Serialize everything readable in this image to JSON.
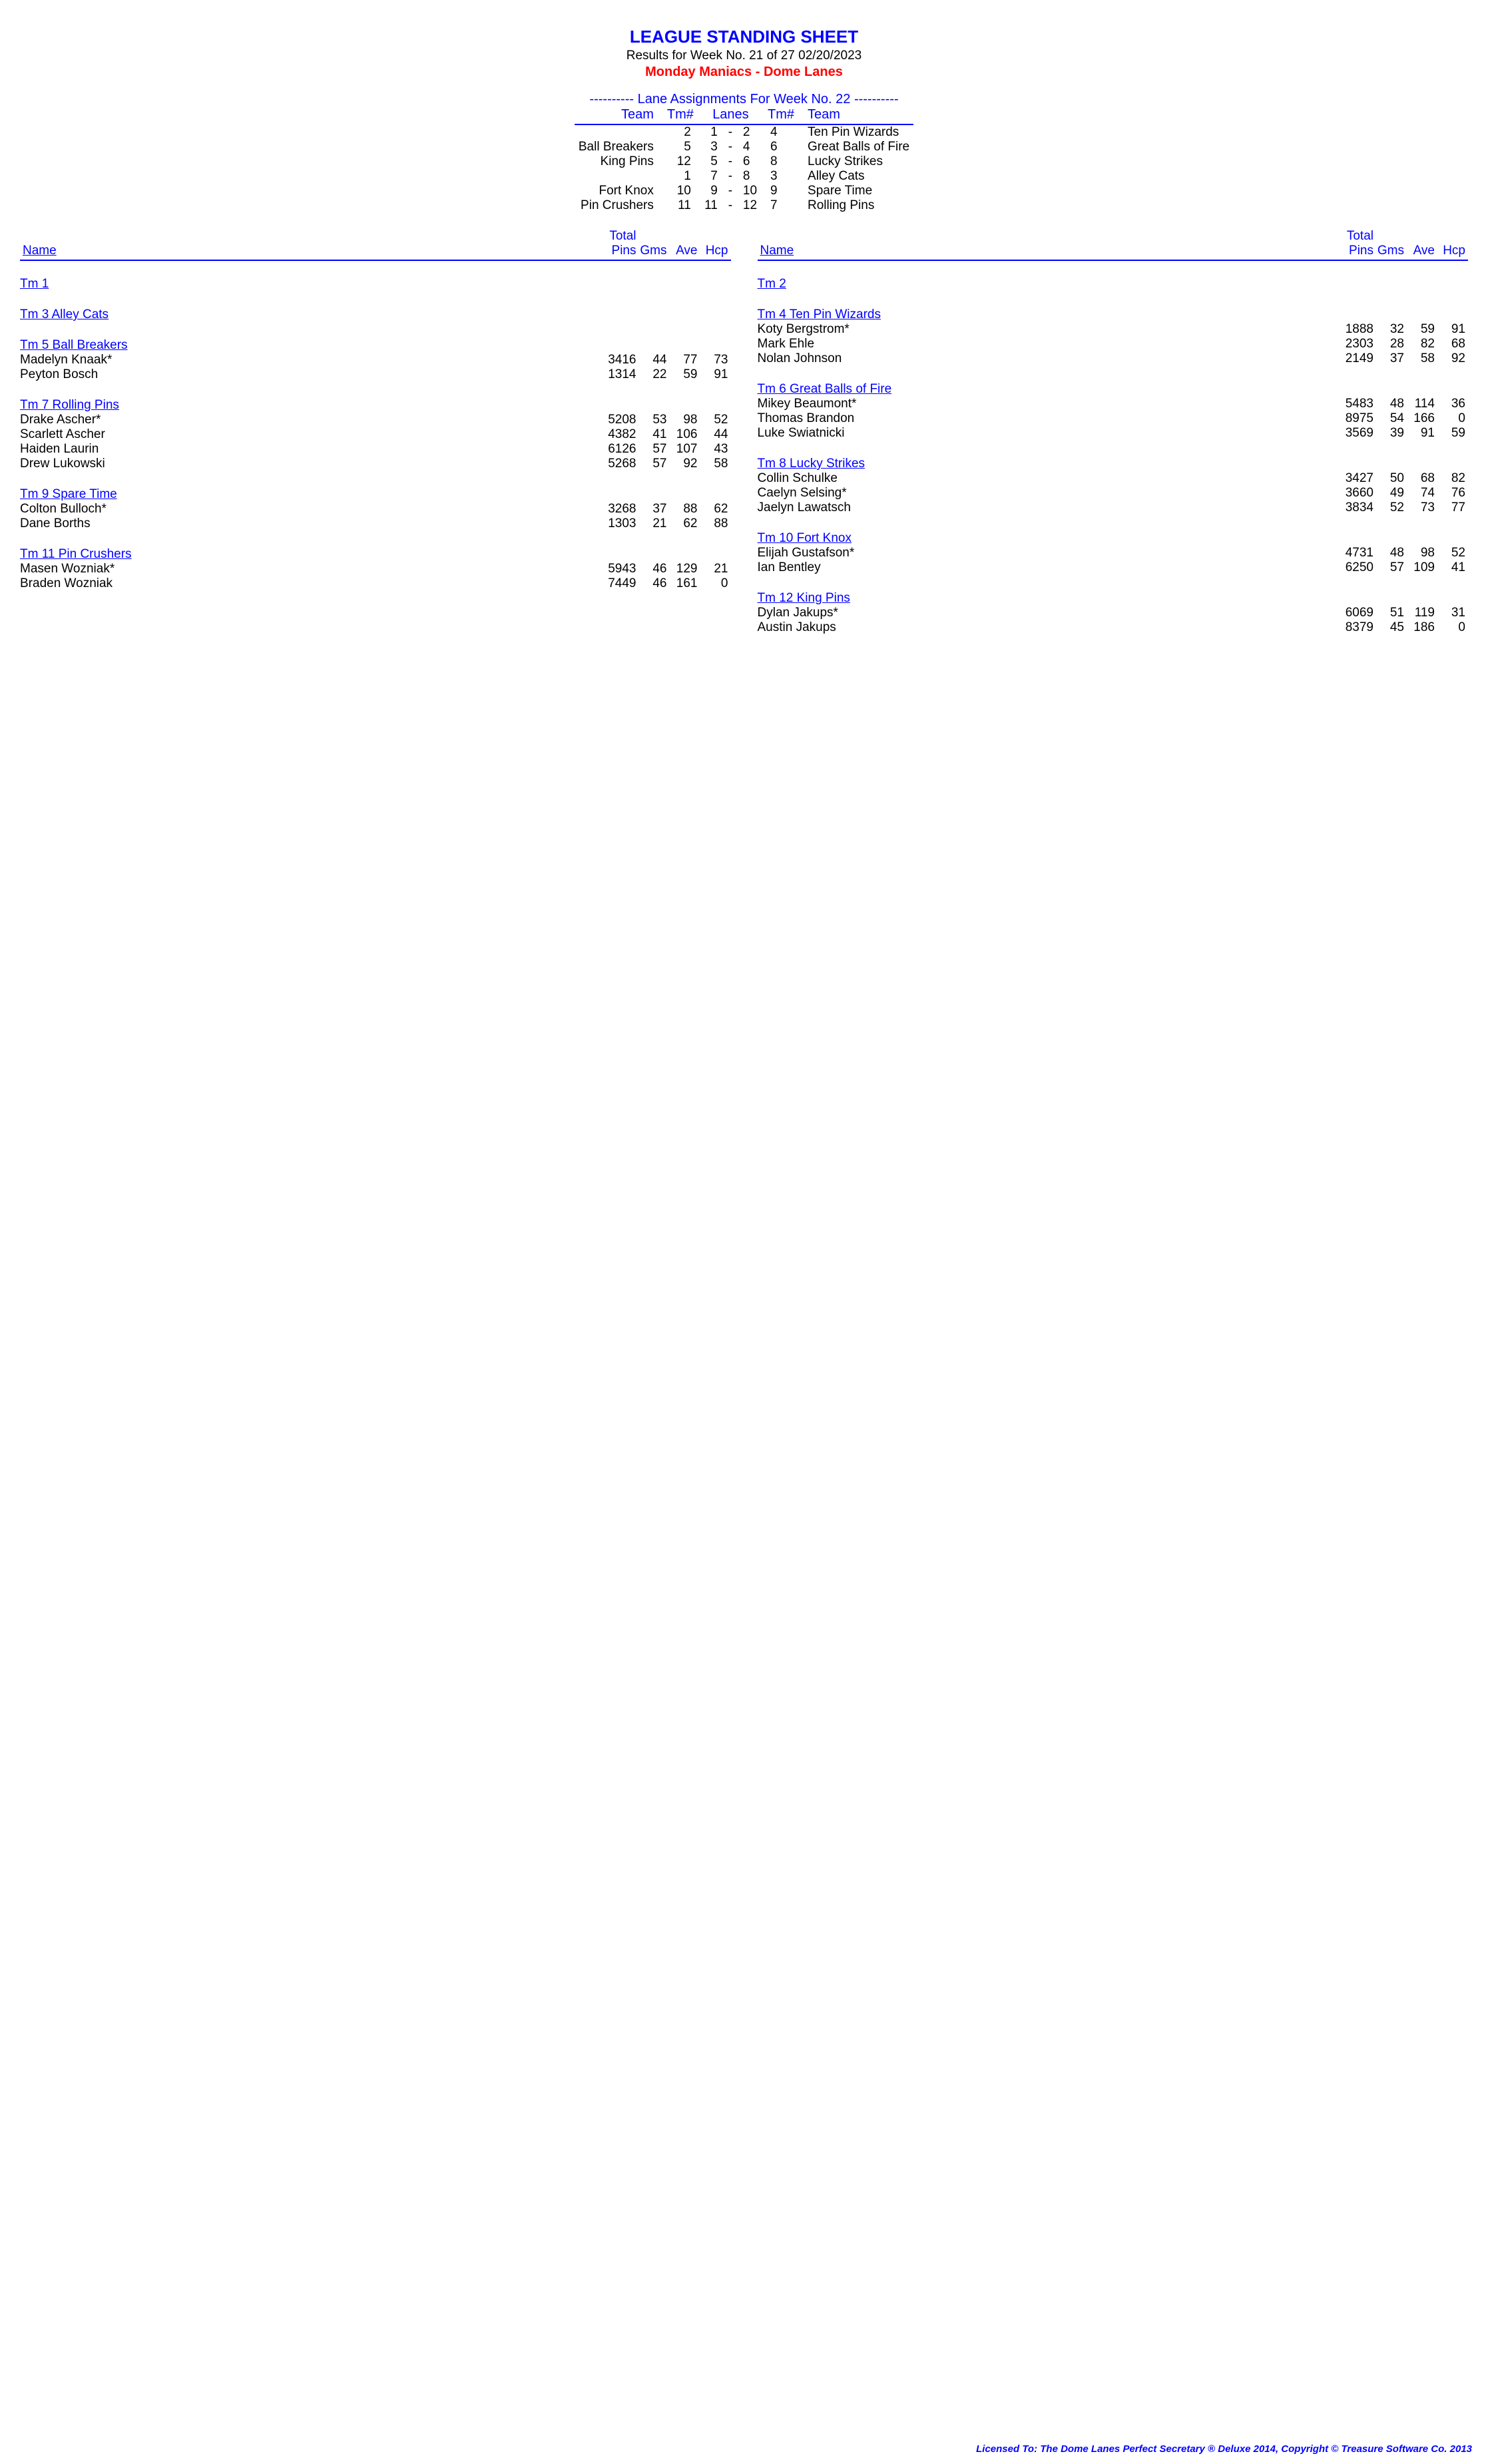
{
  "header": {
    "title": "LEAGUE STANDING SHEET",
    "results_line": "Results for Week No. 21 of 27    02/20/2023",
    "league_line": "Monday Maniacs - Dome Lanes"
  },
  "lane_assignments": {
    "heading": "---------- Lane Assignments For Week No. 22 ----------",
    "columns": {
      "team_l": "Team",
      "tm_l": "Tm#",
      "lanes": "Lanes",
      "tm_r": "Tm#",
      "team_r": "Team"
    },
    "rows": [
      {
        "team_l": "",
        "tm_l": "2",
        "lane_a": "1",
        "lane_b": "2",
        "tm_r": "4",
        "team_r": "Ten Pin Wizards"
      },
      {
        "team_l": "Ball Breakers",
        "tm_l": "5",
        "lane_a": "3",
        "lane_b": "4",
        "tm_r": "6",
        "team_r": "Great Balls of Fire"
      },
      {
        "team_l": "King Pins",
        "tm_l": "12",
        "lane_a": "5",
        "lane_b": "6",
        "tm_r": "8",
        "team_r": "Lucky Strikes"
      },
      {
        "team_l": "",
        "tm_l": "1",
        "lane_a": "7",
        "lane_b": "8",
        "tm_r": "3",
        "team_r": "Alley Cats"
      },
      {
        "team_l": "Fort Knox",
        "tm_l": "10",
        "lane_a": "9",
        "lane_b": "10",
        "tm_r": "9",
        "team_r": "Spare Time"
      },
      {
        "team_l": "Pin Crushers",
        "tm_l": "11",
        "lane_a": "11",
        "lane_b": "12",
        "tm_r": "7",
        "team_r": "Rolling Pins"
      }
    ]
  },
  "stats_headers": {
    "name": "Name",
    "total": "Total",
    "pins": "Pins",
    "gms": "Gms",
    "ave": "Ave",
    "hcp": "Hcp"
  },
  "teams_left": [
    {
      "name": "Tm 1",
      "players": []
    },
    {
      "name": "Tm 3 Alley Cats",
      "players": []
    },
    {
      "name": "Tm 5 Ball Breakers",
      "players": [
        {
          "name": "Madelyn Knaak*",
          "pins": "3416",
          "gms": "44",
          "ave": "77",
          "hcp": "73"
        },
        {
          "name": "Peyton Bosch",
          "pins": "1314",
          "gms": "22",
          "ave": "59",
          "hcp": "91"
        }
      ]
    },
    {
      "name": "Tm 7 Rolling Pins",
      "players": [
        {
          "name": "Drake Ascher*",
          "pins": "5208",
          "gms": "53",
          "ave": "98",
          "hcp": "52"
        },
        {
          "name": "Scarlett Ascher",
          "pins": "4382",
          "gms": "41",
          "ave": "106",
          "hcp": "44"
        },
        {
          "name": "Haiden Laurin",
          "pins": "6126",
          "gms": "57",
          "ave": "107",
          "hcp": "43"
        },
        {
          "name": "Drew Lukowski",
          "pins": "5268",
          "gms": "57",
          "ave": "92",
          "hcp": "58"
        }
      ]
    },
    {
      "name": "Tm 9 Spare Time",
      "players": [
        {
          "name": "Colton Bulloch*",
          "pins": "3268",
          "gms": "37",
          "ave": "88",
          "hcp": "62"
        },
        {
          "name": "Dane Borths",
          "pins": "1303",
          "gms": "21",
          "ave": "62",
          "hcp": "88"
        }
      ]
    },
    {
      "name": "Tm 11 Pin Crushers",
      "players": [
        {
          "name": "Masen Wozniak*",
          "pins": "5943",
          "gms": "46",
          "ave": "129",
          "hcp": "21"
        },
        {
          "name": "Braden Wozniak",
          "pins": "7449",
          "gms": "46",
          "ave": "161",
          "hcp": "0"
        }
      ]
    }
  ],
  "teams_right": [
    {
      "name": "Tm 2",
      "players": []
    },
    {
      "name": "Tm 4 Ten Pin Wizards",
      "players": [
        {
          "name": "Koty Bergstrom*",
          "pins": "1888",
          "gms": "32",
          "ave": "59",
          "hcp": "91"
        },
        {
          "name": "Mark Ehle",
          "pins": "2303",
          "gms": "28",
          "ave": "82",
          "hcp": "68"
        },
        {
          "name": "Nolan Johnson",
          "pins": "2149",
          "gms": "37",
          "ave": "58",
          "hcp": "92"
        }
      ]
    },
    {
      "name": "Tm 6 Great Balls of Fire",
      "players": [
        {
          "name": "Mikey Beaumont*",
          "pins": "5483",
          "gms": "48",
          "ave": "114",
          "hcp": "36"
        },
        {
          "name": "Thomas Brandon",
          "pins": "8975",
          "gms": "54",
          "ave": "166",
          "hcp": "0"
        },
        {
          "name": "Luke Swiatnicki",
          "pins": "3569",
          "gms": "39",
          "ave": "91",
          "hcp": "59"
        }
      ]
    },
    {
      "name": "Tm 8 Lucky Strikes",
      "players": [
        {
          "name": "Collin Schulke",
          "pins": "3427",
          "gms": "50",
          "ave": "68",
          "hcp": "82"
        },
        {
          "name": "Caelyn Selsing*",
          "pins": "3660",
          "gms": "49",
          "ave": "74",
          "hcp": "76"
        },
        {
          "name": "Jaelyn Lawatsch",
          "pins": "3834",
          "gms": "52",
          "ave": "73",
          "hcp": "77"
        }
      ]
    },
    {
      "name": "Tm 10 Fort Knox",
      "players": [
        {
          "name": "Elijah Gustafson*",
          "pins": "4731",
          "gms": "48",
          "ave": "98",
          "hcp": "52"
        },
        {
          "name": "Ian Bentley",
          "pins": "6250",
          "gms": "57",
          "ave": "109",
          "hcp": "41"
        }
      ]
    },
    {
      "name": "Tm 12 King Pins",
      "players": [
        {
          "name": "Dylan Jakups*",
          "pins": "6069",
          "gms": "51",
          "ave": "119",
          "hcp": "31"
        },
        {
          "name": "Austin Jakups",
          "pins": "8379",
          "gms": "45",
          "ave": "186",
          "hcp": "0"
        }
      ]
    }
  ],
  "footer": "Licensed To: The Dome Lanes    Perfect Secretary ® Deluxe  2014, Copyright © Treasure Software Co. 2013",
  "colors": {
    "blue": "#0000ff",
    "red": "#ff0000",
    "black": "#000000",
    "bg": "#ffffff"
  }
}
